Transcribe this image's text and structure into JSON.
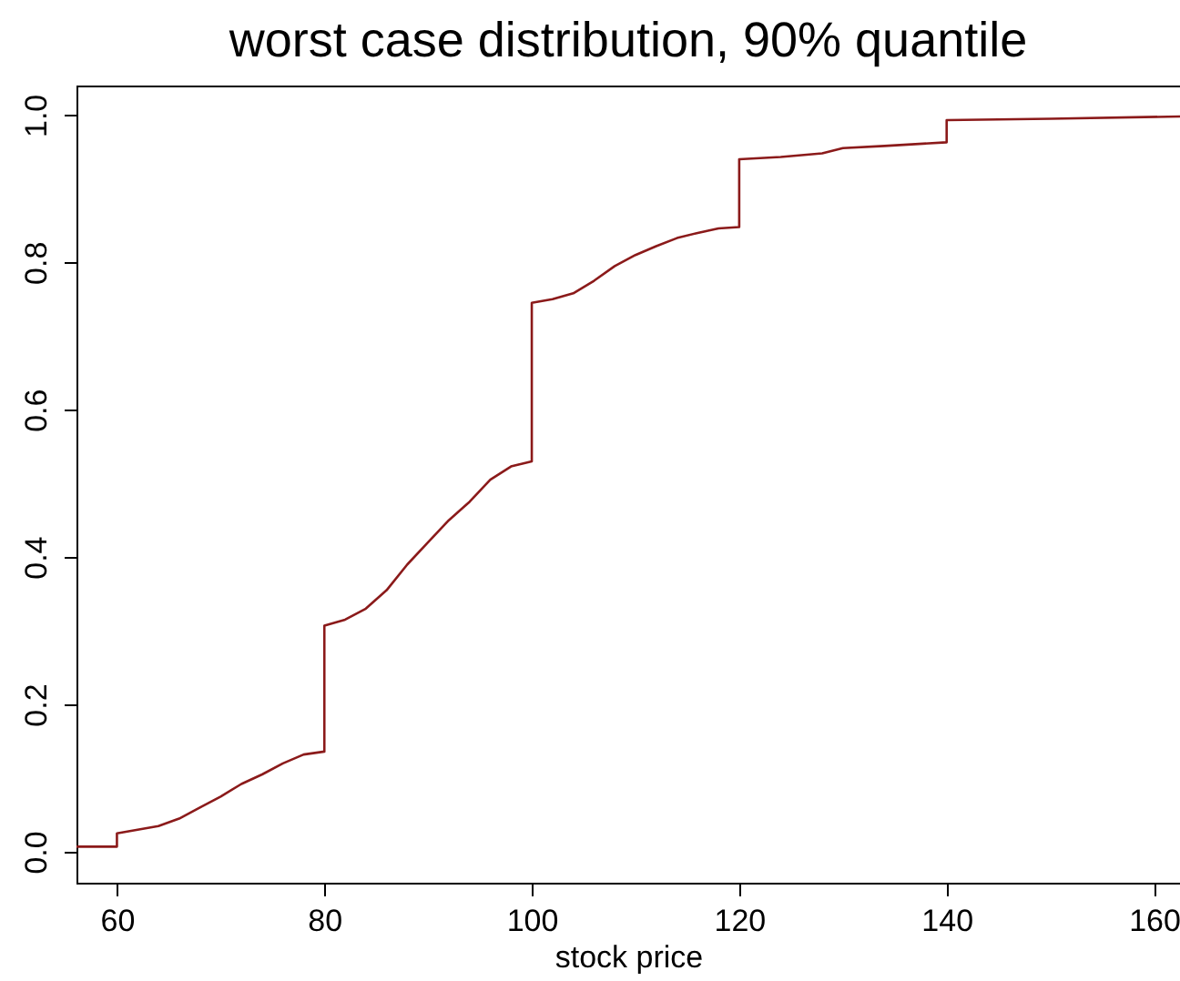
{
  "chart_data": {
    "type": "line",
    "title": "worst case distribution, 90% quantile",
    "xlabel": "stock price",
    "x": [
      56.1,
      60,
      60,
      62,
      64,
      66,
      68,
      70,
      72,
      74,
      76,
      78,
      80,
      80,
      82,
      84,
      86,
      88,
      90,
      92,
      94,
      96,
      98,
      100,
      100,
      102,
      104,
      106,
      108,
      110,
      112,
      114,
      116,
      118,
      120,
      120,
      124,
      128,
      130,
      134,
      140,
      140,
      150,
      162.5
    ],
    "series": [
      {
        "color": "#8b1a1a",
        "values": [
          0.007,
          0.007,
          0.025,
          0.03,
          0.035,
          0.045,
          0.06,
          0.075,
          0.092,
          0.105,
          0.12,
          0.132,
          0.136,
          0.307,
          0.315,
          0.33,
          0.355,
          0.39,
          0.42,
          0.45,
          0.475,
          0.505,
          0.523,
          0.53,
          0.745,
          0.75,
          0.758,
          0.775,
          0.795,
          0.81,
          0.822,
          0.833,
          0.84,
          0.846,
          0.848,
          0.94,
          0.943,
          0.948,
          0.955,
          0.958,
          0.963,
          0.993,
          0.995,
          0.998
        ]
      }
    ],
    "xlim": [
      56.1,
      162.5
    ],
    "xticks": [
      60,
      80,
      100,
      120,
      140,
      160
    ],
    "ylim": [
      -0.042,
      1.04
    ],
    "yticks": [
      {
        "value": 0,
        "label": "0.0"
      },
      {
        "value": 0.2,
        "label": "0.2"
      },
      {
        "value": 0.4,
        "label": "0.4"
      },
      {
        "value": 0.6,
        "label": "0.6"
      },
      {
        "value": 0.8,
        "label": "0.8"
      },
      {
        "value": 1,
        "label": "1.0"
      }
    ],
    "grid": false,
    "line_style": "solid"
  }
}
